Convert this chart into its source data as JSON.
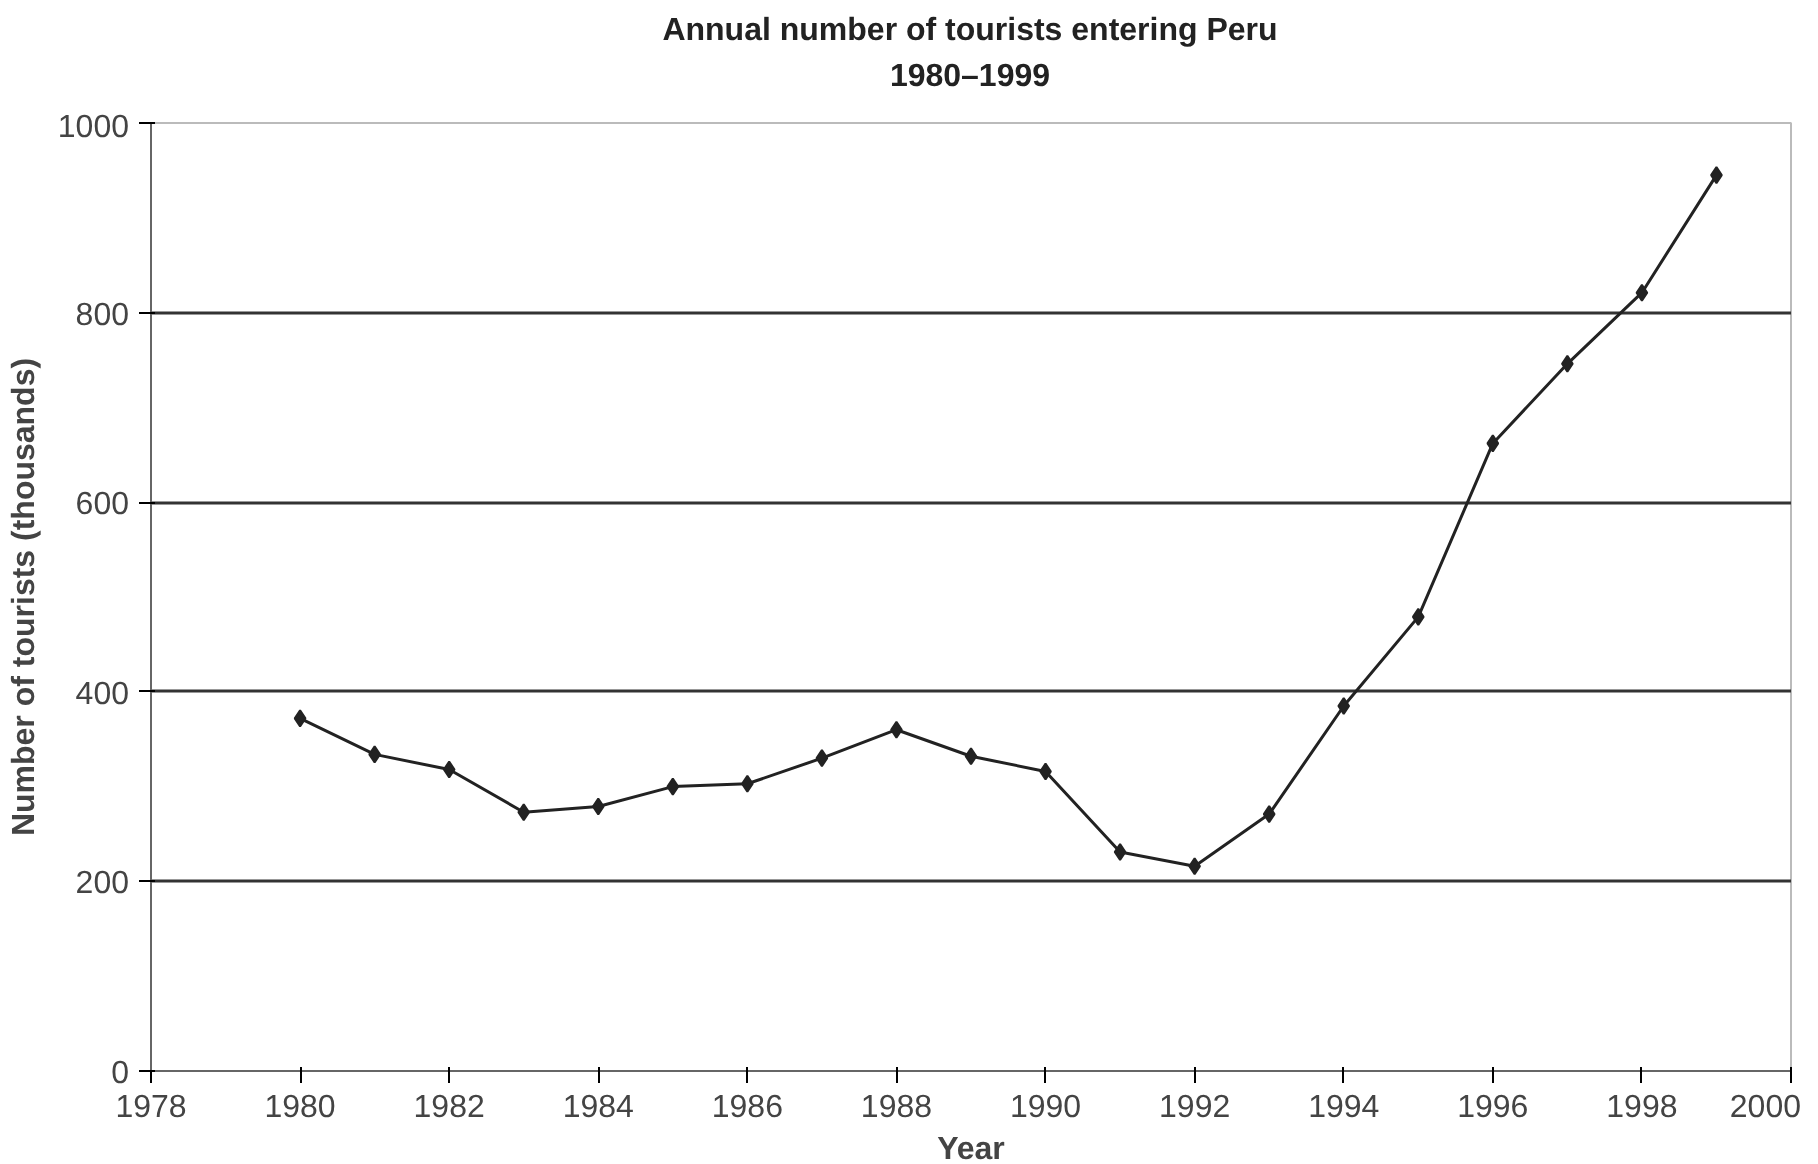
{
  "chart_data": {
    "type": "line",
    "title": "Annual number of tourists entering Peru\n1980–1999",
    "xlabel": "Year",
    "ylabel": "Number of tourists (thousands)",
    "x": [
      1980,
      1981,
      1982,
      1983,
      1984,
      1985,
      1986,
      1987,
      1988,
      1989,
      1990,
      1991,
      1992,
      1993,
      1994,
      1995,
      1996,
      1997,
      1998,
      1999
    ],
    "series": [
      {
        "color": "#222222",
        "values": [
          372,
          334,
          318,
          273,
          279,
          300,
          303,
          330,
          360,
          332,
          316,
          231,
          216,
          271,
          385,
          479,
          662,
          746,
          821,
          945
        ]
      }
    ],
    "xlim": [
      1978,
      2000
    ],
    "xticks": [
      1978,
      1980,
      1982,
      1984,
      1986,
      1988,
      1990,
      1992,
      1994,
      1996,
      1998,
      2000
    ],
    "ylim": [
      0,
      1000
    ],
    "yticks": [
      0,
      200,
      400,
      600,
      800,
      1000
    ],
    "grid": "y",
    "marker": "diamond",
    "line_style": "solid"
  }
}
